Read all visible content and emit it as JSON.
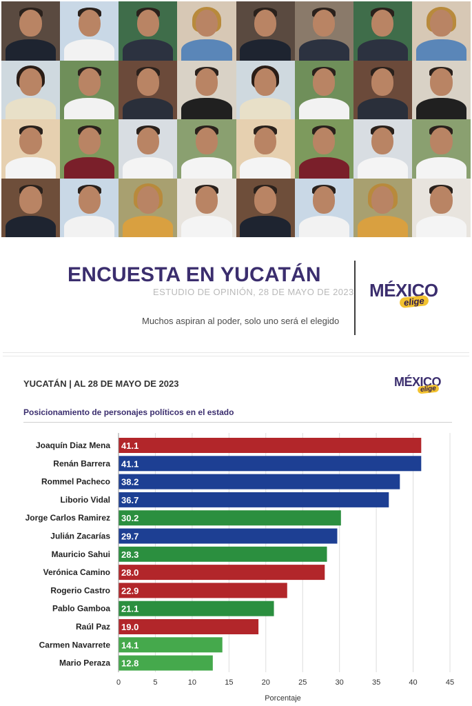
{
  "banner": {
    "title": "ENCUESTA EN YUCATÁN",
    "subtitle": "ESTUDIO DE OPINIÓN, 28 DE MAYO DE 2023",
    "tagline": "Muchos aspiran al poder, solo uno será el elegido",
    "logo_main": "MÉXICO",
    "logo_sub": "elige"
  },
  "chart_header": "YUCATÁN | AL 28 DE MAYO DE 2023",
  "colors": {
    "red": "#b2262a",
    "blue": "#1d3f93",
    "green": "#2b8f3f",
    "light_green": "#45a94c",
    "brand_purple": "#3b2e6e",
    "brand_yellow": "#f2c230"
  },
  "chart_data": {
    "type": "bar",
    "orientation": "horizontal",
    "title": "Posicionamiento de personajes políticos en el estado",
    "xlabel": "Porcentaje",
    "ylabel": "",
    "xlim": [
      0,
      45
    ],
    "xticks": [
      0,
      5,
      10,
      15,
      20,
      25,
      30,
      35,
      40,
      45
    ],
    "grid": "vertical",
    "categories": [
      "Joaquín Diaz Mena",
      "Renán Barrera",
      "Rommel Pacheco",
      "Liborio Vidal",
      "Jorge Carlos Ramirez",
      "Julián Zacarías",
      "Mauricio Sahui",
      "Verónica Camino",
      "Rogerio Castro",
      "Pablo Gamboa",
      "Raúl Paz",
      "Carmen Navarrete",
      "Mario Peraza"
    ],
    "values": [
      41.1,
      41.1,
      38.2,
      36.7,
      30.2,
      29.7,
      28.3,
      28.0,
      22.9,
      21.1,
      19.0,
      14.1,
      12.8
    ],
    "value_labels": [
      "41.1",
      "41.1",
      "38.2",
      "36.7",
      "30.2",
      "29.7",
      "28.3",
      "28.0",
      "22.9",
      "21.1",
      "19.0",
      "14.1",
      "12.8"
    ],
    "bar_colors": [
      "#b2262a",
      "#1d3f93",
      "#1d3f93",
      "#1d3f93",
      "#2b8f3f",
      "#1d3f93",
      "#2b8f3f",
      "#b2262a",
      "#b2262a",
      "#2b8f3f",
      "#b2262a",
      "#45a94c",
      "#45a94c"
    ]
  }
}
